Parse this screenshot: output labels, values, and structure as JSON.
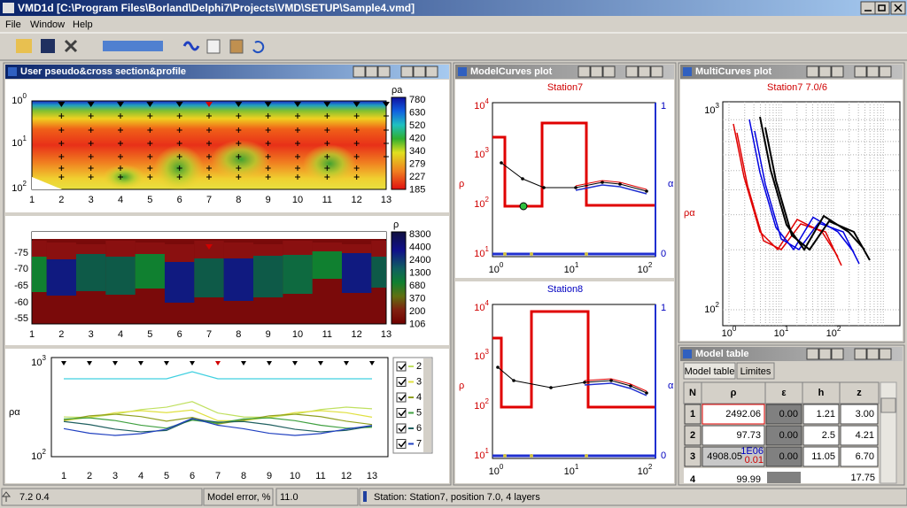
{
  "window": {
    "title": "VMD1d [C:\\Program Files\\Borland\\Delphi7\\Projects\\VMD\\SETUP\\Sample4.vmd]"
  },
  "menu": [
    "File",
    "Window",
    "Help"
  ],
  "section": {
    "title": "User pseudo&cross section&profile",
    "pseudo": {
      "yticks": [
        {
          "base": "10",
          "exp": "0"
        },
        {
          "base": "10",
          "exp": "1"
        },
        {
          "base": "10",
          "exp": "2"
        }
      ],
      "xticks": [
        "1",
        "2",
        "3",
        "4",
        "5",
        "6",
        "7",
        "8",
        "9",
        "10",
        "11",
        "12",
        "13"
      ],
      "colorbar_label": "ρa",
      "colorbar": [
        "780",
        "630",
        "520",
        "420",
        "340",
        "279",
        "227",
        "185"
      ]
    },
    "cross": {
      "yticks": [
        "-75",
        "-70",
        "-65",
        "-60",
        "-55"
      ],
      "xticks": [
        "1",
        "2",
        "3",
        "4",
        "5",
        "6",
        "7",
        "8",
        "9",
        "10",
        "11",
        "12",
        "13"
      ],
      "colorbar_label": "ρ",
      "colorbar": [
        "8300",
        "4400",
        "2400",
        "1300",
        "680",
        "370",
        "200",
        "106"
      ]
    },
    "profile": {
      "yticks": [
        {
          "base": "10",
          "exp": "3"
        },
        {
          "base": "10",
          "exp": "2"
        }
      ],
      "ylabel": "ρα",
      "xticks": [
        "1",
        "2",
        "3",
        "4",
        "5",
        "6",
        "7",
        "8",
        "9",
        "10",
        "11",
        "12",
        "13"
      ],
      "legend": [
        "2",
        "3",
        "4",
        "5",
        "6",
        "7"
      ]
    }
  },
  "model_curves": {
    "title": "ModelCurves plot",
    "plots": [
      {
        "title": "Station7",
        "ylabel": "ρ",
        "y2label": "α",
        "yticks": [
          {
            "base": "10",
            "exp": "4"
          },
          {
            "base": "10",
            "exp": "3"
          },
          {
            "base": "10",
            "exp": "2"
          },
          {
            "base": "10",
            "exp": "1"
          }
        ],
        "y2ticks": [
          "1",
          "0"
        ],
        "xticks": [
          {
            "base": "10",
            "exp": "0"
          },
          {
            "base": "10",
            "exp": "1"
          },
          {
            "base": "10",
            "exp": "2"
          }
        ]
      },
      {
        "title": "Station8",
        "ylabel": "ρ",
        "y2label": "α",
        "yticks": [
          {
            "base": "10",
            "exp": "4"
          },
          {
            "base": "10",
            "exp": "3"
          },
          {
            "base": "10",
            "exp": "2"
          },
          {
            "base": "10",
            "exp": "1"
          }
        ],
        "y2ticks": [
          "1",
          "0"
        ],
        "xticks": [
          {
            "base": "10",
            "exp": "0"
          },
          {
            "base": "10",
            "exp": "1"
          },
          {
            "base": "10",
            "exp": "2"
          }
        ]
      }
    ]
  },
  "multi_curves": {
    "title": "MultiCurves plot",
    "subtitle": "Station7 7.0/6",
    "ylabel": "ρα",
    "yticks": [
      {
        "base": "10",
        "exp": "3"
      },
      {
        "base": "10",
        "exp": "2"
      }
    ],
    "xticks": [
      {
        "base": "10",
        "exp": "0"
      },
      {
        "base": "10",
        "exp": "1"
      },
      {
        "base": "10",
        "exp": "2"
      }
    ]
  },
  "model_table": {
    "title": "Model table",
    "tabs": [
      "Model table",
      "Limites"
    ],
    "header": [
      "N",
      "ρ",
      "ε",
      "h",
      "z"
    ],
    "rows": [
      [
        "1",
        "2492.06",
        "0.00",
        "1.21",
        "3.00"
      ],
      [
        "2",
        "97.73",
        "0.00",
        "2.5",
        "4.21"
      ],
      [
        "3",
        "4908.05",
        "0.00",
        "11.05",
        "6.70"
      ]
    ],
    "row3_limits": {
      "upper": "1E06",
      "lower": "0.01"
    },
    "partial_row": {
      "N": "4",
      "rho": "99.99",
      "z": "17.75"
    }
  },
  "status": {
    "coords": "7.2 0.4",
    "error_label": "Model error, %",
    "error": "11.0",
    "message": "Station: Station7, position 7.0, 4 layers"
  }
}
